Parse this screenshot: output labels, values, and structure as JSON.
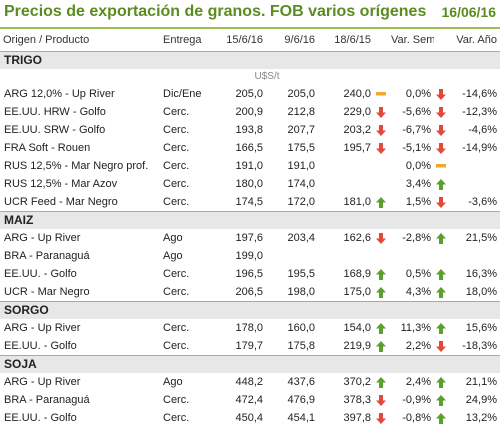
{
  "title": "Precios de exportación de granos. FOB varios orígenes",
  "date": "16/06/16",
  "columns": {
    "origen": "Origen / Producto",
    "entrega": "Entrega",
    "d1": "15/6/16",
    "d2": "9/6/16",
    "d3": "18/6/15",
    "varsem": "Var. Sem.",
    "varanio": "Var. Año"
  },
  "colors": {
    "accent": "#5b8c1f",
    "up": "#5aa02c",
    "down": "#e14a3a",
    "flat": "#f0a830"
  },
  "groups": [
    {
      "name": "TRIGO",
      "unit": "U$S/t",
      "rows": [
        {
          "product": "ARG 12,0% - Up River",
          "delivery": "Dic/Ene",
          "d1": "205,0",
          "d2": "205,0",
          "d3": "240,0",
          "icon3": "flat",
          "var_sem": "0,0%",
          "icon_sem": "down",
          "var_year": "-14,6%"
        },
        {
          "product": "EE.UU. HRW - Golfo",
          "delivery": "Cerc.",
          "d1": "200,9",
          "d2": "212,8",
          "d3": "229,0",
          "icon3": "down",
          "var_sem": "-5,6%",
          "icon_sem": "down",
          "var_year": "-12,3%"
        },
        {
          "product": "EE.UU. SRW - Golfo",
          "delivery": "Cerc.",
          "d1": "193,8",
          "d2": "207,7",
          "d3": "203,2",
          "icon3": "down",
          "var_sem": "-6,7%",
          "icon_sem": "down",
          "var_year": "-4,6%"
        },
        {
          "product": "FRA Soft - Rouen",
          "delivery": "Cerc.",
          "d1": "166,5",
          "d2": "175,5",
          "d3": "195,7",
          "icon3": "down",
          "var_sem": "-5,1%",
          "icon_sem": "down",
          "var_year": "-14,9%"
        },
        {
          "product": "RUS 12,5% - Mar Negro prof.",
          "delivery": "Cerc.",
          "d1": "191,0",
          "d2": "191,0",
          "d3": "",
          "icon3": "",
          "var_sem": "0,0%",
          "icon_sem": "flat",
          "var_year": ""
        },
        {
          "product": "RUS 12,5% - Mar Azov",
          "delivery": "Cerc.",
          "d1": "180,0",
          "d2": "174,0",
          "d3": "",
          "icon3": "",
          "var_sem": "3,4%",
          "icon_sem": "up",
          "var_year": ""
        },
        {
          "product": "UCR Feed - Mar Negro",
          "delivery": "Cerc.",
          "d1": "174,5",
          "d2": "172,0",
          "d3": "181,0",
          "icon3": "up",
          "var_sem": "1,5%",
          "icon_sem": "down",
          "var_year": "-3,6%"
        }
      ]
    },
    {
      "name": "MAIZ",
      "unit": "",
      "rows": [
        {
          "product": "ARG - Up River",
          "delivery": "Ago",
          "d1": "197,6",
          "d2": "203,4",
          "d3": "162,6",
          "icon3": "down",
          "var_sem": "-2,8%",
          "icon_sem": "up",
          "var_year": "21,5%"
        },
        {
          "product": "BRA - Paranaguá",
          "delivery": "Ago",
          "d1": "199,0",
          "d2": "",
          "d3": "",
          "icon3": "",
          "var_sem": "",
          "icon_sem": "",
          "var_year": ""
        },
        {
          "product": "EE.UU. - Golfo",
          "delivery": "Cerc.",
          "d1": "196,5",
          "d2": "195,5",
          "d3": "168,9",
          "icon3": "up",
          "var_sem": "0,5%",
          "icon_sem": "up",
          "var_year": "16,3%"
        },
        {
          "product": "UCR - Mar Negro",
          "delivery": "Cerc.",
          "d1": "206,5",
          "d2": "198,0",
          "d3": "175,0",
          "icon3": "up",
          "var_sem": "4,3%",
          "icon_sem": "up",
          "var_year": "18,0%"
        }
      ]
    },
    {
      "name": "SORGO",
      "unit": "",
      "rows": [
        {
          "product": "ARG - Up River",
          "delivery": "Cerc.",
          "d1": "178,0",
          "d2": "160,0",
          "d3": "154,0",
          "icon3": "up",
          "var_sem": "11,3%",
          "icon_sem": "up",
          "var_year": "15,6%"
        },
        {
          "product": "EE.UU. - Golfo",
          "delivery": "Cerc.",
          "d1": "179,7",
          "d2": "175,8",
          "d3": "219,9",
          "icon3": "up",
          "var_sem": "2,2%",
          "icon_sem": "down",
          "var_year": "-18,3%"
        }
      ]
    },
    {
      "name": "SOJA",
      "unit": "",
      "rows": [
        {
          "product": "ARG - Up River",
          "delivery": "Ago",
          "d1": "448,2",
          "d2": "437,6",
          "d3": "370,2",
          "icon3": "up",
          "var_sem": "2,4%",
          "icon_sem": "up",
          "var_year": "21,1%"
        },
        {
          "product": "BRA - Paranaguá",
          "delivery": "Cerc.",
          "d1": "472,4",
          "d2": "476,9",
          "d3": "378,3",
          "icon3": "down",
          "var_sem": "-0,9%",
          "icon_sem": "up",
          "var_year": "24,9%"
        },
        {
          "product": "EE.UU. - Golfo",
          "delivery": "Cerc.",
          "d1": "450,4",
          "d2": "454,1",
          "d3": "397,8",
          "icon3": "down",
          "var_sem": "-0,8%",
          "icon_sem": "up",
          "var_year": "13,2%"
        }
      ]
    }
  ]
}
